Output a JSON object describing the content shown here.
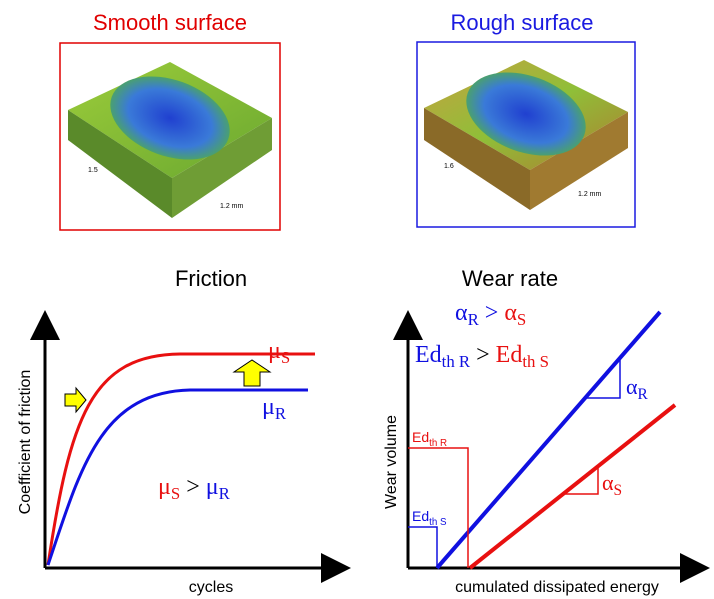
{
  "panels": [
    {
      "title": "Smooth surface",
      "scale_label": "1.5",
      "length_label": "1.2 mm"
    },
    {
      "title": "Rough surface",
      "scale_label": "1.6",
      "length_label": "1.2 mm"
    }
  ],
  "friction": {
    "title": "Friction",
    "y_label": "Coefficient of friction",
    "x_label": "cycles",
    "curve_labels": [
      {
        "symbol": "μ",
        "sub": "S"
      },
      {
        "symbol": "μ",
        "sub": "R"
      }
    ],
    "relation": {
      "left": {
        "symbol": "μ",
        "sub": "S"
      },
      "op": ">",
      "right": {
        "symbol": "μ",
        "sub": "R"
      }
    }
  },
  "wear": {
    "title": "Wear rate",
    "y_label": "Wear volume",
    "x_label": "cumulated dissipated energy",
    "relations": [
      {
        "left": {
          "symbol": "α",
          "sub": "R"
        },
        "op": ">",
        "right": {
          "symbol": "α",
          "sub": "S"
        }
      },
      {
        "left": {
          "symbol": "Ed",
          "sub": "th R"
        },
        "op": ">",
        "right": {
          "symbol": "Ed",
          "sub": "th S"
        }
      }
    ],
    "threshold_labels": [
      {
        "symbol": "Ed",
        "sub": "th R"
      },
      {
        "symbol": "Ed",
        "sub": "th S"
      }
    ],
    "slope_labels": [
      {
        "symbol": "α",
        "sub": "R"
      },
      {
        "symbol": "α",
        "sub": "S"
      }
    ]
  }
}
